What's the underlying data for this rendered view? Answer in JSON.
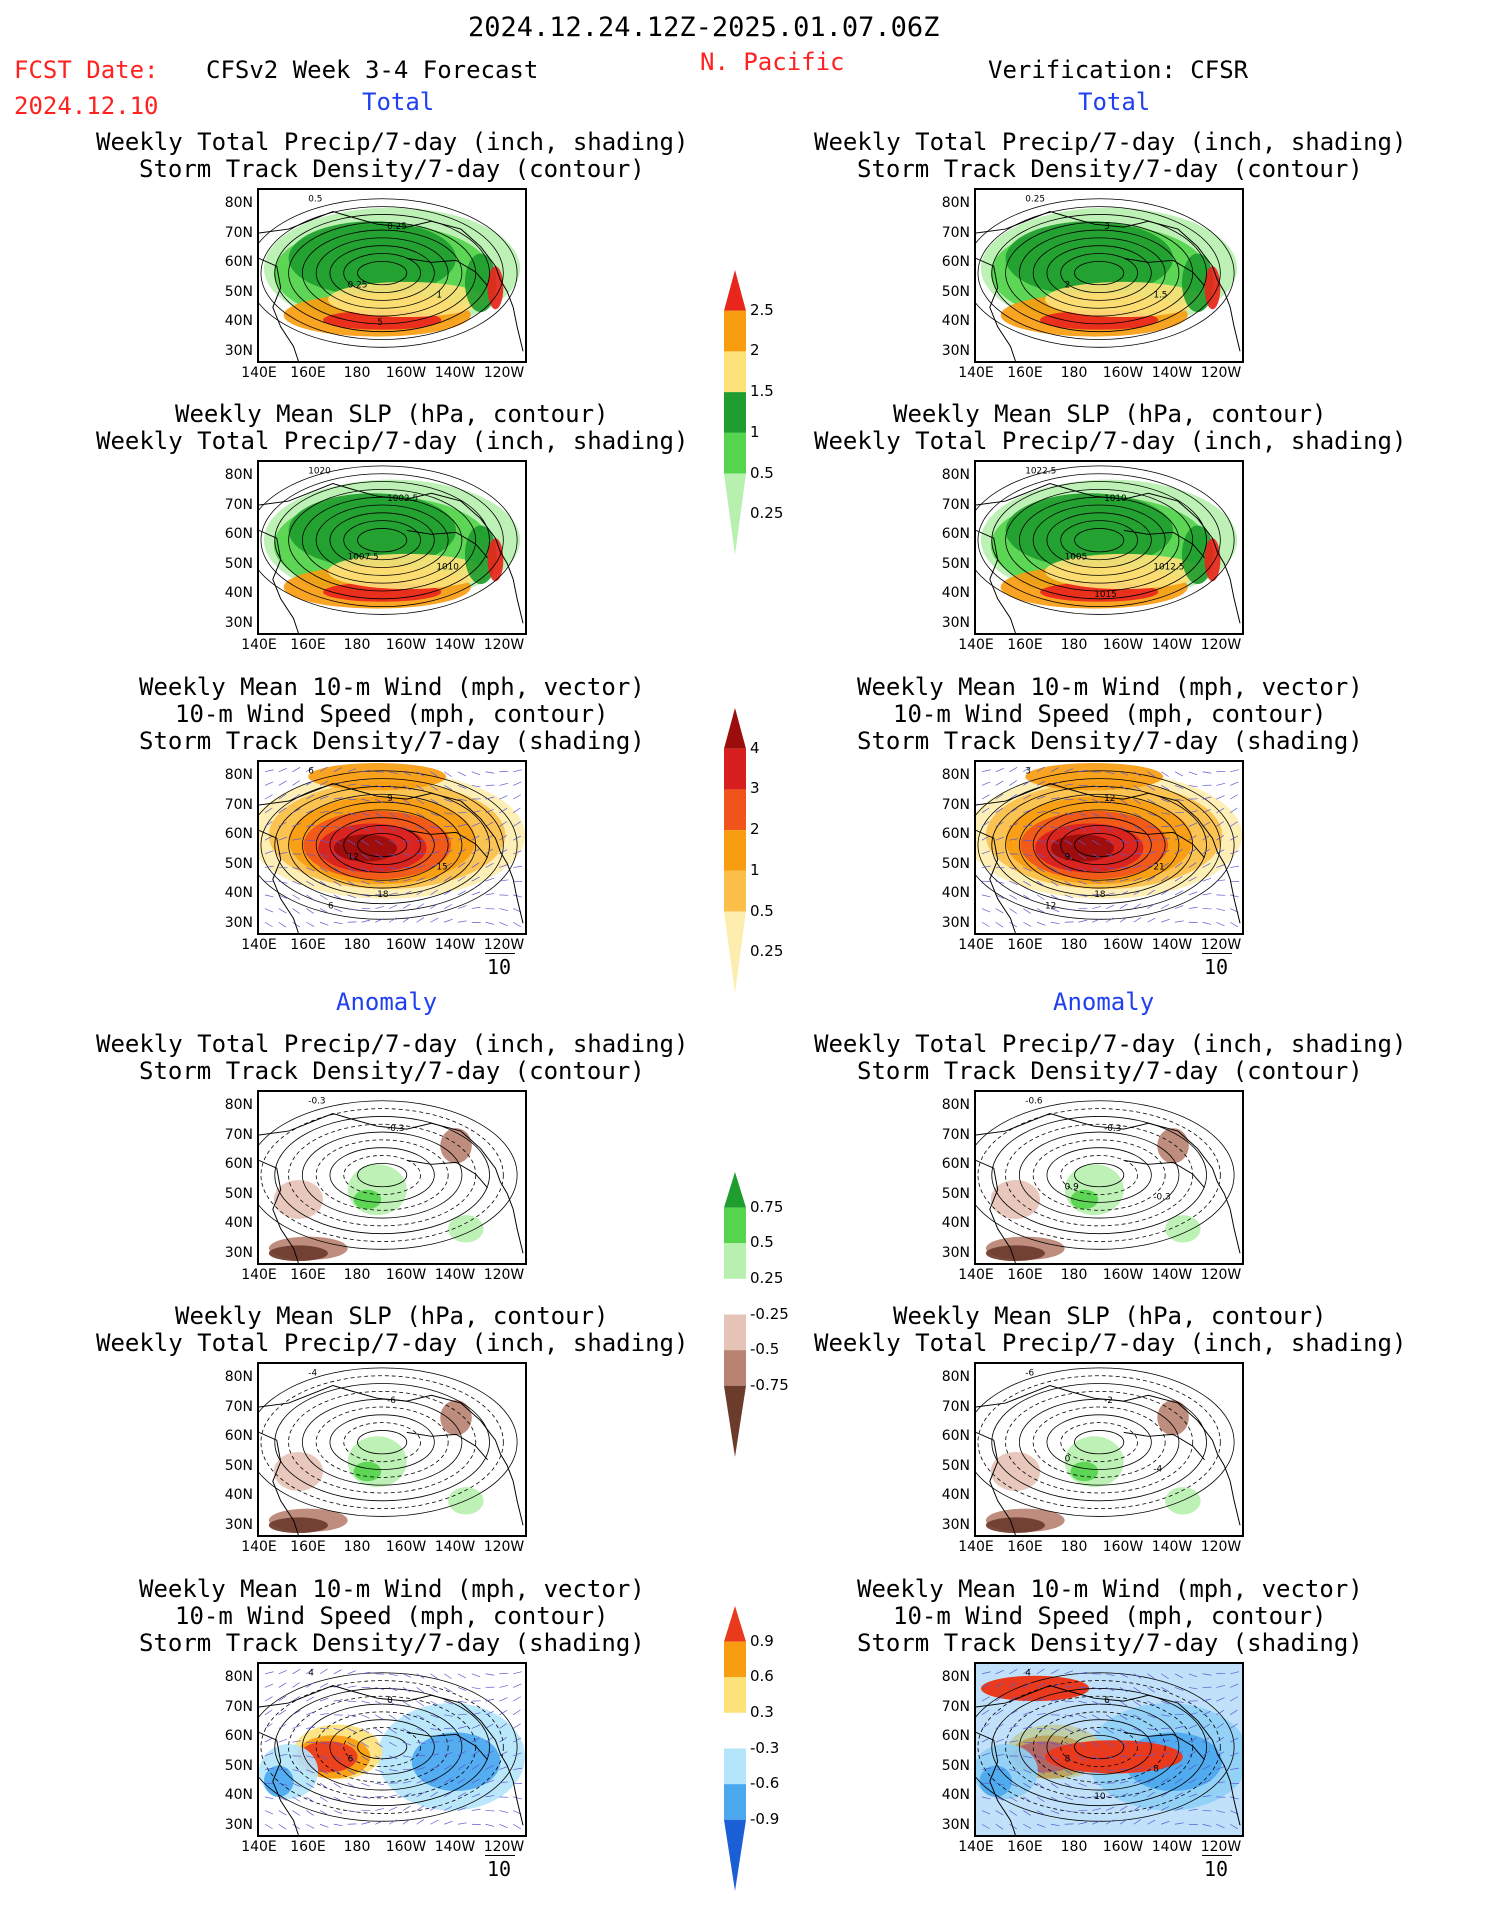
{
  "header": {
    "date_range": "2024.12.24.12Z-2025.01.07.06Z",
    "region": "N. Pacific",
    "fcst_label": "FCST Date:",
    "fcst_date": "2024.12.10",
    "forecast_title": "CFSv2 Week 3-4 Forecast",
    "verification_title": "Verification: CFSR"
  },
  "sections": {
    "total_left": "Total",
    "total_right": "Total",
    "anomaly_left": "Anomaly",
    "anomaly_right": "Anomaly"
  },
  "panel_titles": {
    "precip_storm": [
      "Weekly Total Precip/7-day (inch, shading)",
      "Storm Track Density/7-day (contour)"
    ],
    "slp_precip": [
      "Weekly Mean SLP (hPa, contour)",
      "Weekly Total Precip/7-day (inch, shading)"
    ],
    "wind_storm": [
      "Weekly Mean 10-m Wind (mph, vector)",
      "10-m Wind Speed (mph, contour)",
      "Storm Track Density/7-day (shading)"
    ]
  },
  "axes": {
    "lat_ticks": [
      "80N",
      "70N",
      "60N",
      "50N",
      "40N",
      "30N"
    ],
    "lon_ticks": [
      "140E",
      "160E",
      "180",
      "160W",
      "140W",
      "120W"
    ]
  },
  "vector_reference": "10",
  "colorbars": {
    "precip_total": {
      "labels": [
        "2.5",
        "2",
        "1.5",
        "1",
        "0.5",
        "0.25"
      ],
      "colors": [
        "#e8261c",
        "#f89c10",
        "#fde27a",
        "#1f9d2e",
        "#55d44e",
        "#b8f0b0"
      ]
    },
    "storm_total": {
      "labels": [
        "4",
        "3",
        "2",
        "1",
        "0.5",
        "0.25"
      ],
      "colors": [
        "#9b0c0c",
        "#d81f1f",
        "#f0541a",
        "#f89c10",
        "#fbbf4a",
        "#fdeeb0"
      ]
    },
    "precip_anom": {
      "labels": [
        "0.75",
        "0.5",
        "0.25",
        "-0.25",
        "-0.5",
        "-0.75"
      ],
      "colors": [
        "#1f9d2e",
        "#55d44e",
        "#b8f0b0",
        "#ffffff",
        "#e6c3b7",
        "#b98373",
        "#6b3b2c"
      ]
    },
    "storm_anom": {
      "labels": [
        "0.9",
        "0.6",
        "0.3",
        "-0.3",
        "-0.6",
        "-0.9"
      ],
      "colors": [
        "#ea3a1e",
        "#f89c10",
        "#fde27a",
        "#ffffff",
        "#b5e5fb",
        "#4aa8ef",
        "#1a5fd6"
      ]
    }
  },
  "contour_labels": {
    "p1": [
      "0.5",
      "0.25",
      "0.25",
      "1",
      "5"
    ],
    "p2": [
      "0.25",
      "3",
      "2",
      "1.5"
    ],
    "p3": [
      "1020",
      "1002.5",
      "1007.5",
      "1010"
    ],
    "p4": [
      "1022.5",
      "1010",
      "1005",
      "1012.5",
      "1015"
    ],
    "p5": [
      "6",
      "9",
      "12",
      "15",
      "18",
      "6"
    ],
    "p6": [
      "3",
      "12",
      "9",
      "21",
      "18",
      "12"
    ],
    "p7": [
      "-0.3",
      "-0.3"
    ],
    "p8": [
      "-0.6",
      "-0.3",
      "0.9",
      "-0.3"
    ],
    "p9": [
      "-4",
      "-6"
    ],
    "p10": [
      "-6",
      "-2",
      "0",
      "-4"
    ],
    "p11": [
      "4",
      "0",
      "6"
    ],
    "p12": [
      "4",
      "6",
      "8",
      "8",
      "10"
    ]
  }
}
